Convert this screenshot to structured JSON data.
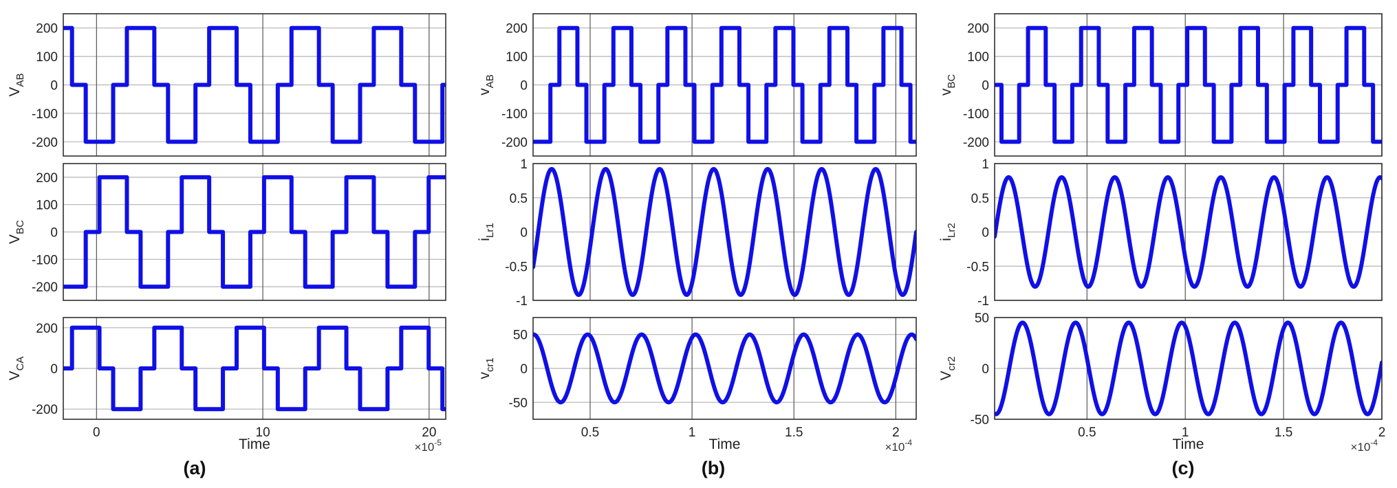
{
  "accent_color": "#1010e6",
  "grid_color": "#b4b4b4",
  "chart_data": [
    {
      "type": "line",
      "panel": "(a)",
      "row": 1,
      "ylabel_main": "V",
      "ylabel_sub": "AB",
      "xlim": [
        -2,
        21
      ],
      "ylim": [
        -250,
        250
      ],
      "yticks": [
        -200,
        -100,
        0,
        100,
        200
      ],
      "ytick_labels": [
        "-200",
        "-100",
        "0",
        "100",
        "200"
      ],
      "xgrid": [
        0,
        10,
        20
      ],
      "waveform": "square3",
      "amplitude": 200,
      "period": 4.95,
      "phase": 1.0
    },
    {
      "type": "line",
      "panel": "(a)",
      "row": 2,
      "ylabel_main": "V",
      "ylabel_sub": "BC",
      "xlim": [
        -2,
        21
      ],
      "ylim": [
        -250,
        250
      ],
      "yticks": [
        -200,
        -100,
        0,
        100,
        200
      ],
      "ytick_labels": [
        "-200",
        "-100",
        "0",
        "100",
        "200"
      ],
      "xgrid": [
        0,
        10,
        20
      ],
      "waveform": "square3",
      "amplitude": 200,
      "period": 4.95,
      "phase": -0.65
    },
    {
      "type": "line",
      "panel": "(a)",
      "row": 3,
      "ylabel_main": "V",
      "ylabel_sub": "CA",
      "xlim": [
        -2,
        21
      ],
      "ylim": [
        -250,
        250
      ],
      "yticks": [
        -200,
        0,
        200
      ],
      "ytick_labels": [
        "-200",
        "0",
        "200"
      ],
      "xgrid": [
        0,
        10,
        20
      ],
      "xticks": [
        0,
        10,
        20
      ],
      "xtick_labels": [
        "0",
        "10",
        "20"
      ],
      "xlabel": "Time",
      "x_exponent_base": "×10",
      "x_exponent_power": "-5",
      "waveform": "square3",
      "amplitude": 200,
      "period": 4.95,
      "phase": -2.3
    },
    {
      "type": "line",
      "panel": "(b)",
      "row": 1,
      "ylabel_main": "v",
      "ylabel_sub": "AB",
      "xlim": [
        0.22,
        2.1
      ],
      "ylim": [
        -250,
        250
      ],
      "yticks": [
        -200,
        -100,
        0,
        100,
        200
      ],
      "ytick_labels": [
        "-200",
        "-100",
        "0",
        "100",
        "200"
      ],
      "xgrid": [
        0.5,
        1,
        1.5,
        2
      ],
      "waveform": "square3",
      "amplitude": 200,
      "period": 0.265,
      "phase": 0.305
    },
    {
      "type": "line",
      "panel": "(b)",
      "row": 2,
      "ylabel_main": "i",
      "ylabel_sub": "Lr1",
      "xlim": [
        0.22,
        2.1
      ],
      "ylim": [
        -1,
        1
      ],
      "yticks": [
        -1,
        -0.5,
        0,
        0.5,
        1
      ],
      "ytick_labels": [
        "-1",
        "-0.5",
        "0",
        "0.5",
        "1"
      ],
      "xgrid": [
        0.5,
        1,
        1.5,
        2
      ],
      "waveform": "sine",
      "amplitude": 0.92,
      "period": 0.265,
      "phase": 0.245
    },
    {
      "type": "line",
      "panel": "(b)",
      "row": 3,
      "ylabel_main": "v",
      "ylabel_sub": "cr1",
      "xlim": [
        0.22,
        2.1
      ],
      "ylim": [
        -75,
        75
      ],
      "yticks": [
        -50,
        0,
        50
      ],
      "ytick_labels": [
        "-50",
        "0",
        "50"
      ],
      "xgrid": [
        0.5,
        1,
        1.5,
        2
      ],
      "xticks": [
        0.5,
        1,
        1.5,
        2
      ],
      "xtick_labels": [
        "0.5",
        "1",
        "1.5",
        "2"
      ],
      "xlabel": "Time",
      "x_exponent_base": "×10",
      "x_exponent_power": "-4",
      "waveform": "sine",
      "amplitude": 50,
      "period": 0.265,
      "phase": 0.1565
    },
    {
      "type": "line",
      "panel": "(c)",
      "row": 1,
      "ylabel_main": "v",
      "ylabel_sub": "BC",
      "xlim": [
        0.03,
        2.0
      ],
      "ylim": [
        -250,
        250
      ],
      "yticks": [
        -200,
        -100,
        0,
        100,
        200
      ],
      "ytick_labels": [
        "-200",
        "-100",
        "0",
        "100",
        "200"
      ],
      "xgrid": [
        0.5,
        1,
        1.5,
        2
      ],
      "waveform": "square3",
      "amplitude": 200,
      "period": 0.27,
      "phase": -0.115
    },
    {
      "type": "line",
      "panel": "(c)",
      "row": 2,
      "ylabel_main": "i",
      "ylabel_sub": "Lr2",
      "xlim": [
        0.03,
        2.0
      ],
      "ylim": [
        -1,
        1
      ],
      "yticks": [
        -1,
        -0.5,
        0,
        0.5,
        1
      ],
      "ytick_labels": [
        "-1",
        "-0.5",
        "0",
        "0.5",
        "1"
      ],
      "xgrid": [
        0.5,
        1,
        1.5,
        2
      ],
      "waveform": "sine",
      "amplitude": 0.8,
      "period": 0.27,
      "phase": 0.0337
    },
    {
      "type": "line",
      "panel": "(c)",
      "row": 3,
      "ylabel_main": "V",
      "ylabel_sub": "cr2",
      "xlim": [
        0.03,
        2.0
      ],
      "ylim": [
        -50,
        50
      ],
      "yticks": [
        -50,
        0,
        50
      ],
      "ytick_labels": [
        "-50",
        "0",
        "50"
      ],
      "xgrid": [
        0.5,
        1,
        1.5,
        2
      ],
      "xticks": [
        0.5,
        1,
        1.5,
        2
      ],
      "xtick_labels": [
        "0.5",
        "1",
        "1.5",
        "2"
      ],
      "xlabel": "Time",
      "x_exponent_base": "×10",
      "x_exponent_power": "-4",
      "waveform": "sine",
      "amplitude": 45,
      "period": 0.27,
      "phase": 0.1045
    }
  ],
  "captions": [
    "(a)",
    "(b)",
    "(c)"
  ]
}
